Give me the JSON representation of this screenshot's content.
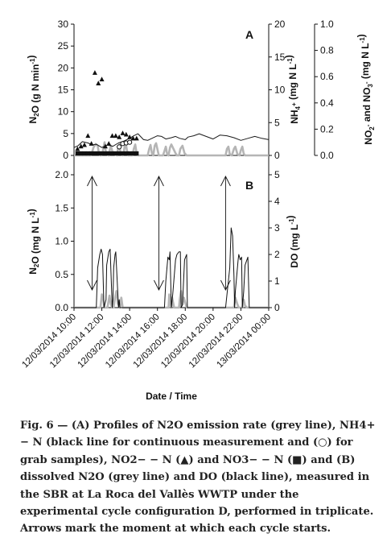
{
  "chart_data": [
    {
      "panel": "A",
      "type": "line",
      "x_axis": {
        "label": "Date / Time",
        "unit": "hour",
        "range_hours": [
          10,
          24
        ]
      },
      "y_axes": [
        {
          "side": "left",
          "label_parts": [
            "N",
            "2",
            "O (g N min",
            "-1",
            ")"
          ],
          "ylim": [
            0,
            30
          ],
          "ticks": [
            "0",
            "5",
            "10",
            "15",
            "20",
            "25",
            "30"
          ]
        },
        {
          "side": "right",
          "label_parts": [
            "NH",
            "4",
            "+",
            " (mg N L",
            "-1",
            ")"
          ],
          "ylim": [
            0,
            20
          ],
          "ticks": [
            "0",
            "5",
            "10",
            "15",
            "20"
          ]
        },
        {
          "side": "far-right",
          "label_parts": [
            "NO",
            "2",
            "-",
            " and NO",
            "3",
            "-",
            " (mg N L",
            "-1",
            ")"
          ],
          "ylim": [
            0,
            1.0
          ],
          "ticks": [
            "0.0",
            "0.2",
            "0.4",
            "0.6",
            "0.8",
            "1.0"
          ]
        }
      ],
      "series": [
        {
          "key": "n2o",
          "axis": "left",
          "color": "#b5b5b5",
          "x": [
            10.0,
            11.0,
            11.2,
            11.3,
            11.4,
            11.55,
            11.7,
            11.8,
            11.9,
            11.95,
            12.05,
            12.1,
            12.2,
            12.3,
            12.5,
            12.55,
            12.65,
            12.8,
            13.1,
            13.15,
            13.25,
            13.35,
            13.5,
            13.6,
            13.7,
            13.8,
            13.9,
            14.2,
            14.3,
            14.4,
            14.5,
            14.6,
            14.7,
            14.8,
            15.0,
            15.3,
            15.4,
            15.5,
            15.6,
            15.7,
            15.8,
            15.9,
            16.1,
            16.4,
            16.5,
            16.6,
            16.7,
            16.8,
            16.9,
            17.0,
            17.3,
            17.4,
            17.55,
            17.65,
            17.8,
            17.95,
            18.1,
            18.2,
            20.9,
            21.0,
            21.1,
            21.2,
            21.35,
            21.5,
            21.6,
            21.75,
            21.9,
            22.0,
            22.1,
            22.2,
            22.3,
            22.4,
            24.0
          ],
          "y": [
            0,
            0,
            0,
            0.8,
            1.8,
            2.6,
            2.2,
            0.3,
            0,
            0,
            0.5,
            1.5,
            3.0,
            0.4,
            0,
            1.0,
            2.2,
            0.4,
            0,
            1.4,
            2.5,
            0.5,
            0,
            1.2,
            3.2,
            1.2,
            0,
            0,
            1.5,
            2.5,
            0.5,
            0,
            0,
            0,
            0,
            0,
            1.4,
            2.4,
            0.5,
            0,
            2.2,
            2.8,
            0,
            0,
            1.0,
            2.0,
            0.3,
            0,
            1.8,
            2.5,
            0.5,
            0,
            0,
            1.5,
            2.2,
            0.5,
            0,
            0,
            0,
            1.5,
            2.0,
            0.3,
            0,
            1.5,
            2.0,
            0.3,
            0,
            1.2,
            2.0,
            0.4,
            0,
            0,
            0
          ]
        },
        {
          "key": "nh4",
          "axis": "right",
          "color": "#1a1a1a",
          "x": [
            10.0,
            10.3,
            10.6,
            11.0,
            11.3,
            11.6,
            12.0,
            12.4,
            12.8,
            13.2,
            13.6,
            14.0,
            14.3,
            14.6,
            15.0,
            15.3,
            15.6,
            16.0,
            16.3,
            16.6,
            17.0,
            17.3,
            17.6,
            18.0,
            18.2,
            18.6,
            19.0,
            19.5,
            20.0,
            20.5,
            21.0,
            21.5,
            22.0,
            22.5,
            23.0,
            23.5,
            24.0
          ],
          "y": [
            1.2,
            1.5,
            2.1,
            1.9,
            1.6,
            1.7,
            1.2,
            1.6,
            1.4,
            1.9,
            2.2,
            2.6,
            3.0,
            3.3,
            2.4,
            2.3,
            2.6,
            3.0,
            2.9,
            2.5,
            2.7,
            2.9,
            2.6,
            2.4,
            2.8,
            3.0,
            3.3,
            2.9,
            2.5,
            3.1,
            3.0,
            2.7,
            2.3,
            2.6,
            2.9,
            2.6,
            2.4
          ]
        },
        {
          "key": "nh4_grab",
          "axis": "right",
          "marker": "circle",
          "color": "#111",
          "x": [
            13.25,
            13.5,
            13.75,
            14.0
          ],
          "y": [
            1.3,
            1.8,
            1.9,
            2.0
          ]
        },
        {
          "key": "no2",
          "axis": "far-right",
          "marker": "triangle",
          "color": "#111",
          "x": [
            10.25,
            10.5,
            10.75,
            11.0,
            11.25,
            11.5,
            11.75,
            12.0,
            12.25,
            12.5,
            12.75,
            13.0,
            13.25,
            13.5,
            13.75,
            14.0,
            14.25,
            14.5
          ],
          "y": [
            0.05,
            0.07,
            0.08,
            0.15,
            0.09,
            0.63,
            0.55,
            0.58,
            0.07,
            0.09,
            0.15,
            0.15,
            0.14,
            0.17,
            0.16,
            0.14,
            0.13,
            0.13
          ]
        },
        {
          "key": "no3",
          "axis": "far-right",
          "marker": "square",
          "color": "#111",
          "x": [
            10.25,
            10.5,
            10.75,
            11.0,
            11.25,
            11.5,
            11.75,
            12.0,
            12.25,
            12.5,
            12.75,
            13.0,
            13.25,
            13.5,
            13.75,
            14.0,
            14.25,
            14.5
          ],
          "y": [
            0,
            0,
            0,
            0,
            0,
            0,
            0,
            0,
            0,
            0,
            0,
            0,
            0,
            0,
            0,
            0,
            0,
            0
          ]
        }
      ]
    },
    {
      "panel": "B",
      "type": "line",
      "x_axis": {
        "label": "Date / Time",
        "unit": "hour",
        "range_hours": [
          10,
          24
        ]
      },
      "y_axes": [
        {
          "side": "left",
          "label_parts": [
            "N",
            "2",
            "O (mg N L",
            "-1",
            ")"
          ],
          "ylim": [
            0,
            2.0
          ],
          "ticks": [
            "0.0",
            "0.5",
            "1.0",
            "1.5",
            "2.0"
          ]
        },
        {
          "side": "right",
          "label_parts": [
            "DO (mg L",
            "-1",
            ")"
          ],
          "ylim": [
            0,
            5
          ],
          "ticks": [
            "0",
            "1",
            "2",
            "3",
            "4",
            "5"
          ]
        }
      ],
      "cycle_start_arrows_hours": [
        11.3,
        16.1,
        20.9
      ],
      "series": [
        {
          "key": "n2o",
          "axis": "left",
          "color": "#b5b5b5",
          "x": [
            10.0,
            11.9,
            11.95,
            12.0,
            12.1,
            12.2,
            12.4,
            12.55,
            12.65,
            12.75,
            12.85,
            12.95,
            13.05,
            13.15,
            13.3,
            13.4,
            13.5,
            16.5,
            16.8,
            16.85,
            16.9,
            17.0,
            17.05,
            17.2,
            17.55,
            17.6,
            17.7,
            17.8,
            17.9,
            18.1,
            21.1,
            21.5,
            21.6,
            21.75,
            21.85,
            22.1,
            22.2,
            22.3,
            22.45,
            22.55,
            24.0
          ],
          "y": [
            0,
            0,
            0.1,
            0.2,
            0.12,
            0,
            0,
            0.18,
            0.05,
            0,
            0,
            0.15,
            0.25,
            0.06,
            0,
            0.15,
            0,
            0,
            0,
            0.2,
            0.08,
            0,
            0.15,
            0,
            0,
            0.12,
            0.25,
            0.05,
            0.15,
            0,
            0,
            0,
            0.15,
            0.05,
            0,
            0,
            0.12,
            0.03,
            0,
            0,
            0
          ]
        },
        {
          "key": "do",
          "axis": "right",
          "color": "#111",
          "x": [
            10.0,
            11.6,
            11.7,
            11.85,
            11.95,
            12.05,
            12.15,
            12.3,
            12.35,
            12.5,
            12.6,
            12.75,
            12.8,
            12.85,
            12.95,
            13.0,
            13.2,
            13.25,
            13.3,
            13.45,
            16.5,
            16.6,
            16.75,
            16.85,
            16.9,
            17.0,
            17.1,
            17.3,
            17.4,
            17.55,
            17.65,
            17.7,
            17.8,
            17.95,
            18.1,
            18.15,
            20.9,
            21.2,
            21.3,
            21.4,
            21.5,
            21.55,
            21.6,
            21.8,
            21.85,
            21.95,
            22.05,
            22.1,
            22.2,
            22.3,
            22.5,
            22.6,
            24.0
          ],
          "y": [
            0,
            0,
            1.5,
            2.0,
            2.2,
            2.0,
            0,
            0.3,
            1.6,
            2.1,
            2.2,
            0,
            0.3,
            1.5,
            2.0,
            2.1,
            0,
            0.3,
            0,
            0,
            0,
            1.0,
            1.9,
            1.8,
            2.1,
            0,
            0.5,
            1.8,
            2.0,
            2.1,
            2.1,
            0,
            0.1,
            1.8,
            2.0,
            0,
            0,
            1.5,
            3.0,
            2.7,
            1.2,
            0,
            0.6,
            1.8,
            2.0,
            1.8,
            1.9,
            0,
            0.6,
            1.6,
            1.9,
            0,
            0
          ]
        }
      ]
    }
  ],
  "x_ticks": [
    "12/03/2014 10:00",
    "12/03/2014 12:00",
    "12/03/2014 14:00",
    "12/03/2014 16:00",
    "12/03/2014 18:00",
    "12/03/2014 20:00",
    "12/03/2014 22:00",
    "13/03/2014 00:00"
  ],
  "panel_letters": {
    "a": "A",
    "b": "B"
  },
  "x_label": "Date / Time",
  "caption": {
    "fig_label": "Fig. 6",
    "text": "(A) Profiles of N2O emission rate (grey line), NH4+ − N (black line for continuous measurement and (○) for grab samples), NO2− − N (▲) and NO3− − N (■) and (B) dissolved N2O (grey line) and DO (black line), measured in the SBR at La Roca del Vallès WWTP under the experimental cycle configuration D, performed in triplicate. Arrows mark the moment at which each cycle starts."
  }
}
